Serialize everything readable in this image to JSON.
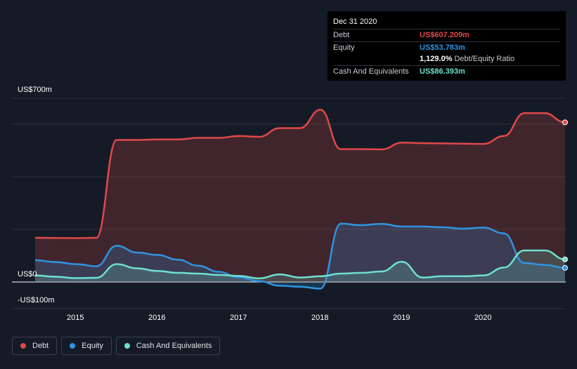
{
  "tooltip": {
    "date": "Dec 31 2020",
    "debt_label": "Debt",
    "debt_value": "US$607.209m",
    "equity_label": "Equity",
    "equity_value": "US$53.783m",
    "ratio_value": "1,129.0%",
    "ratio_label": "Debt/Equity Ratio",
    "cash_label": "Cash And Equivalents",
    "cash_value": "US$86.393m"
  },
  "legend": {
    "debt": "Debt",
    "equity": "Equity",
    "cash": "Cash And Equivalents"
  },
  "colors": {
    "debt": "#e0484a",
    "equity": "#2f94e1",
    "cash": "#6fe0cf",
    "background": "#151b26"
  },
  "chart_data": {
    "type": "area",
    "ylim": [
      -100,
      700
    ],
    "y_tick_labels": [
      "US$700m",
      "US$0",
      "-US$100m"
    ],
    "x_tick_labels": [
      "2015",
      "2016",
      "2017",
      "2018",
      "2019",
      "2020"
    ],
    "grid": true,
    "legend_position": "bottom-left",
    "series": [
      {
        "name": "Debt",
        "x": [
          2014.5,
          2015.0,
          2015.25,
          2015.5,
          2015.75,
          2016.0,
          2016.25,
          2016.5,
          2016.75,
          2017.0,
          2017.25,
          2017.5,
          2017.75,
          2018.0,
          2018.25,
          2018.5,
          2018.75,
          2019.0,
          2019.25,
          2019.5,
          2019.75,
          2020.0,
          2020.25,
          2020.5,
          2020.75,
          2021.0
        ],
        "values": [
          168,
          167,
          168,
          540,
          540,
          542,
          542,
          548,
          548,
          555,
          552,
          585,
          585,
          655,
          505,
          505,
          504,
          530,
          528,
          527,
          526,
          525,
          555,
          642,
          642,
          607
        ]
      },
      {
        "name": "Equity",
        "x": [
          2014.5,
          2014.75,
          2015.0,
          2015.25,
          2015.5,
          2015.75,
          2016.0,
          2016.25,
          2016.5,
          2016.75,
          2017.0,
          2017.25,
          2017.5,
          2017.75,
          2018.0,
          2018.25,
          2018.5,
          2018.75,
          2019.0,
          2019.25,
          2019.5,
          2019.75,
          2020.0,
          2020.25,
          2020.5,
          2020.75,
          2021.0
        ],
        "values": [
          83,
          76,
          68,
          60,
          138,
          112,
          103,
          85,
          62,
          39,
          18,
          3,
          -14,
          -18,
          -25,
          222,
          216,
          221,
          211,
          211,
          208,
          203,
          207,
          185,
          72,
          65,
          54
        ]
      },
      {
        "name": "Cash And Equivalents",
        "x": [
          2014.5,
          2014.75,
          2015.0,
          2015.25,
          2015.5,
          2015.75,
          2016.0,
          2016.25,
          2016.5,
          2016.75,
          2017.0,
          2017.25,
          2017.5,
          2017.75,
          2018.0,
          2018.25,
          2018.5,
          2018.75,
          2019.0,
          2019.25,
          2019.5,
          2019.75,
          2020.0,
          2020.25,
          2020.5,
          2020.75,
          2021.0
        ],
        "values": [
          25,
          20,
          15,
          16,
          68,
          52,
          42,
          35,
          32,
          27,
          23,
          14,
          29,
          17,
          22,
          32,
          35,
          40,
          77,
          17,
          22,
          22,
          25,
          55,
          120,
          120,
          86
        ]
      }
    ]
  }
}
